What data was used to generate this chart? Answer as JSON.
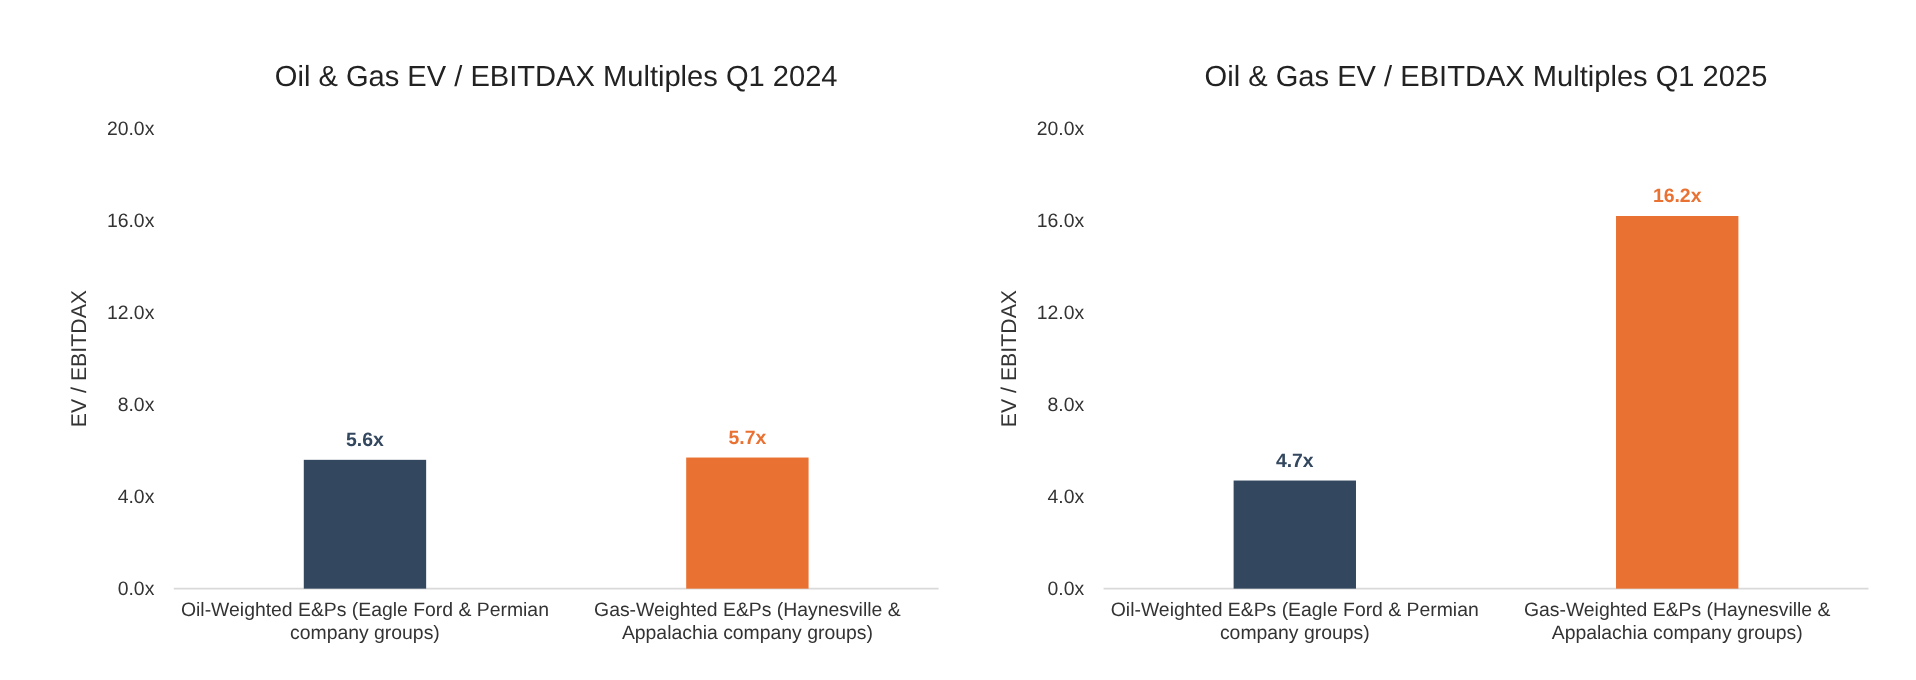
{
  "chart_data": [
    {
      "type": "bar",
      "title": "Oil & Gas EV / EBITDAX Multiples Q1 2024",
      "ylabel": "EV / EBITDAX",
      "categories": [
        "Oil-Weighted E&Ps (Eagle Ford & Permian company groups)",
        "Gas-Weighted E&Ps (Haynesville & Appalachia company groups)"
      ],
      "values": [
        5.6,
        5.7
      ],
      "colors": [
        "#33475f",
        "#e97132"
      ],
      "value_labels": [
        "5.6x",
        "5.7x"
      ],
      "ylim": [
        0,
        20
      ],
      "yticks": [
        {
          "value": 0,
          "label": "0.0x"
        },
        {
          "value": 4,
          "label": "4.0x"
        },
        {
          "value": 8,
          "label": "8.0x"
        },
        {
          "value": 12,
          "label": "12.0x"
        },
        {
          "value": 16,
          "label": "16.0x"
        },
        {
          "value": 20,
          "label": "20.0x"
        }
      ],
      "grid": false
    },
    {
      "type": "bar",
      "title": "Oil & Gas EV / EBITDAX Multiples Q1 2025",
      "ylabel": "EV / EBITDAX",
      "categories": [
        "Oil-Weighted E&Ps (Eagle Ford & Permian company groups)",
        "Gas-Weighted E&Ps (Haynesville & Appalachia company groups)"
      ],
      "values": [
        4.7,
        16.2
      ],
      "colors": [
        "#33475f",
        "#e97132"
      ],
      "value_labels": [
        "4.7x",
        "16.2x"
      ],
      "ylim": [
        0,
        20
      ],
      "yticks": [
        {
          "value": 0,
          "label": "0.0x"
        },
        {
          "value": 4,
          "label": "4.0x"
        },
        {
          "value": 8,
          "label": "8.0x"
        },
        {
          "value": 12,
          "label": "12.0x"
        },
        {
          "value": 16,
          "label": "16.0x"
        },
        {
          "value": 20,
          "label": "20.0x"
        }
      ],
      "grid": false
    }
  ]
}
